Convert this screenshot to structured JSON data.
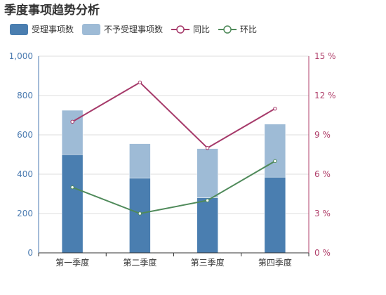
{
  "chart_data": {
    "type": "bar",
    "title": "季度事项趋势分析",
    "categories": [
      "第一季度",
      "第二季度",
      "第三季度",
      "第四季度"
    ],
    "left_axis": {
      "min": 0,
      "max": 1000,
      "ticks": [
        0,
        200,
        400,
        600,
        800,
        1000
      ],
      "tick_labels": [
        "0",
        "200",
        "400",
        "600",
        "800",
        "1,000"
      ]
    },
    "right_axis": {
      "min": 0,
      "max": 15,
      "ticks": [
        0,
        3,
        6,
        9,
        12,
        15
      ],
      "tick_labels": [
        "0 %",
        "3 %",
        "6 %",
        "9 %",
        "12 %",
        "15 %"
      ]
    },
    "series": [
      {
        "name": "受理事项数",
        "type": "bar",
        "stack": "total",
        "axis": "left",
        "color": "#4a7eb0",
        "values": [
          500,
          380,
          280,
          385
        ]
      },
      {
        "name": "不予受理事项数",
        "type": "bar",
        "stack": "total",
        "axis": "left",
        "color": "#9ebbd6",
        "values": [
          225,
          175,
          250,
          270
        ]
      },
      {
        "name": "同比",
        "type": "line",
        "axis": "right",
        "color": "#a63a6a",
        "values": [
          10,
          13,
          8,
          11
        ]
      },
      {
        "name": "环比",
        "type": "line",
        "axis": "right",
        "color": "#4f8a5a",
        "values": [
          5,
          3,
          4,
          7
        ]
      }
    ],
    "grid": true,
    "legend_position": "top-left"
  }
}
